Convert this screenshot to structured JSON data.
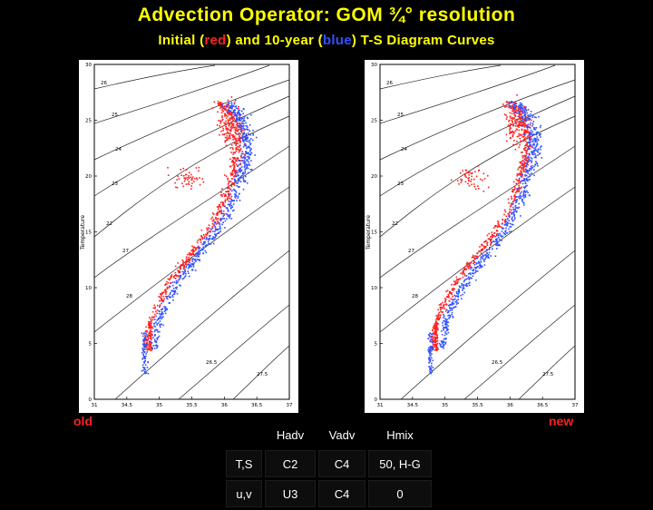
{
  "title": "Advection Operator: GOM ¾° resolution",
  "subtitle": {
    "pre": "Initial (",
    "red_word": "red",
    "mid": ") and 10-year (",
    "blue_word": "blue",
    "post": ") T-S Diagram Curves"
  },
  "labels": {
    "old": "old",
    "new": "new"
  },
  "plot": {
    "ylabel": "Temperature",
    "xticks": [
      "31",
      "34.5",
      "35",
      "35.5",
      "36",
      "36.5",
      "37"
    ],
    "yticks": [
      "0",
      "5",
      "10",
      "15",
      "20",
      "25",
      "30"
    ],
    "contour_labels": [
      "22",
      "23",
      "24",
      "25",
      "26",
      "27",
      "28",
      "25.5",
      "26.5",
      "27.5"
    ]
  },
  "table": {
    "headers": [
      "",
      "Hadv",
      "Vadv",
      "Hmix"
    ],
    "rows": [
      {
        "name": "T,S",
        "cells": [
          "C2",
          "C4",
          "50, H-G"
        ]
      },
      {
        "name": "u,v",
        "cells": [
          "U3",
          "C4",
          "0"
        ]
      }
    ]
  },
  "colors": {
    "title": "#ffff00",
    "initial": "#ff2020",
    "final": "#3050ff",
    "background": "#000000"
  }
}
